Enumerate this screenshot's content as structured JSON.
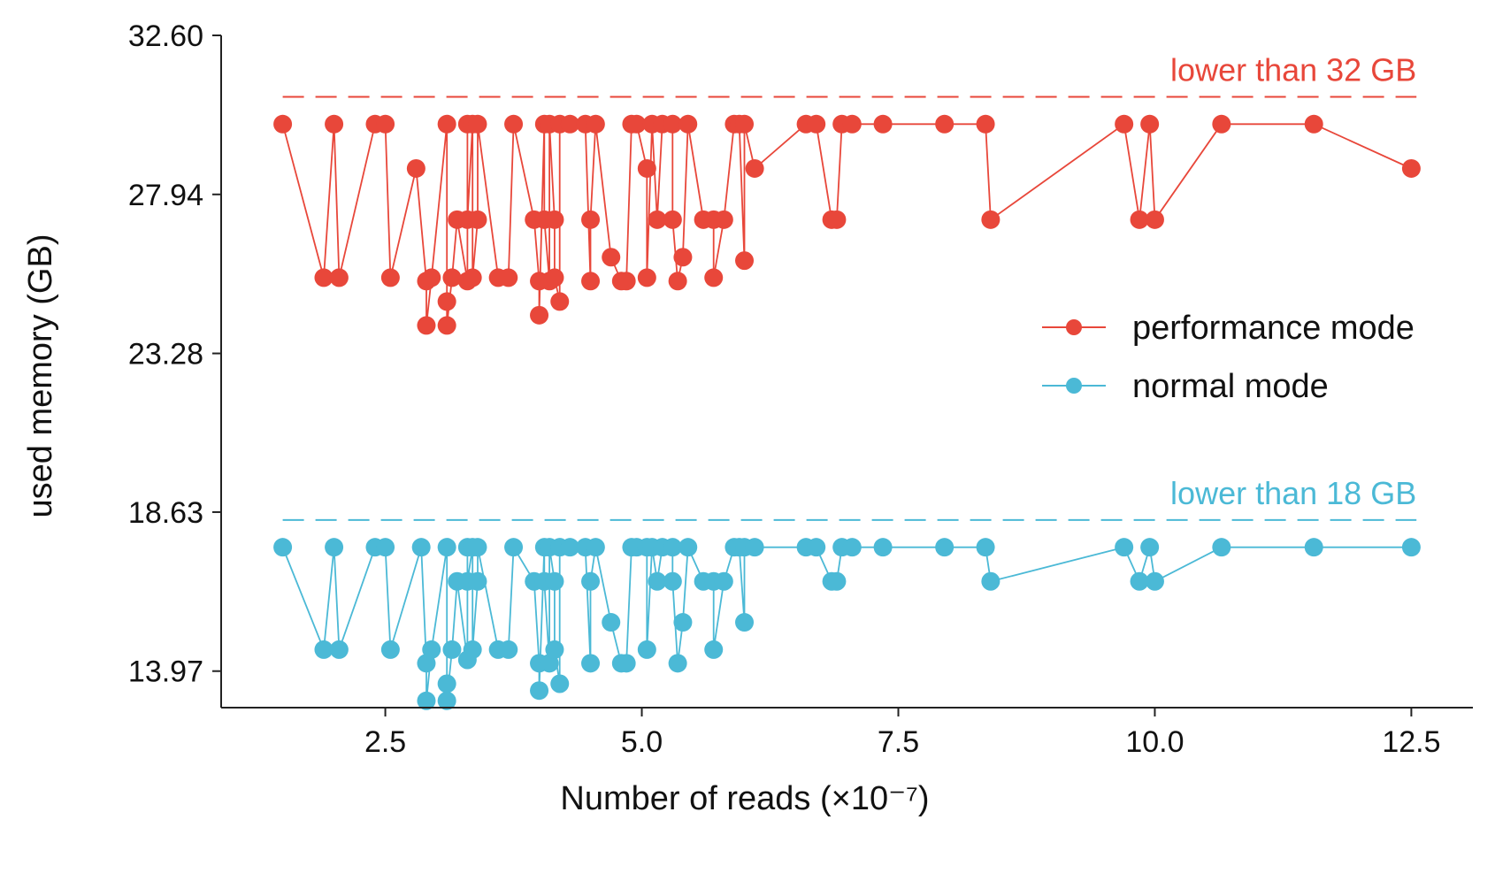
{
  "chart_data": {
    "type": "line",
    "xlabel": "Number of reads (×10⁻⁷)",
    "ylabel": "used memory (GB)",
    "xlim": [
      0.9,
      13.1
    ],
    "ylim": [
      12.9,
      32.6
    ],
    "xticks": [
      2.5,
      5.0,
      7.5,
      10.0,
      12.5
    ],
    "xtick_labels": [
      "2.5",
      "5.0",
      "7.5",
      "10.0",
      "12.5"
    ],
    "yticks": [
      13.97,
      18.63,
      23.28,
      27.94,
      32.6
    ],
    "ytick_labels": [
      "13.97",
      "18.63",
      "23.28",
      "27.94",
      "32.60"
    ],
    "grid": false,
    "legend_position": "right-middle",
    "thresholds": [
      {
        "y": 30.8,
        "label": "lower than 32 GB",
        "color": "#E8473A"
      },
      {
        "y": 18.4,
        "label": "lower than 18 GB",
        "color": "#4BB9D6"
      }
    ],
    "series": [
      {
        "name": "performance mode",
        "color": "#E8473A",
        "points": [
          [
            1.5,
            30.0
          ],
          [
            1.9,
            25.5
          ],
          [
            2.0,
            30.0
          ],
          [
            2.05,
            25.5
          ],
          [
            2.4,
            30.0
          ],
          [
            2.5,
            30.0
          ],
          [
            2.55,
            25.5
          ],
          [
            2.8,
            28.7
          ],
          [
            2.9,
            25.4
          ],
          [
            2.9,
            24.1
          ],
          [
            2.95,
            25.5
          ],
          [
            3.1,
            30.0
          ],
          [
            3.1,
            24.8
          ],
          [
            3.1,
            24.1
          ],
          [
            3.15,
            25.5
          ],
          [
            3.2,
            27.2
          ],
          [
            3.3,
            25.4
          ],
          [
            3.3,
            30.0
          ],
          [
            3.3,
            27.2
          ],
          [
            3.35,
            30.0
          ],
          [
            3.35,
            25.5
          ],
          [
            3.4,
            27.2
          ],
          [
            3.4,
            30.0
          ],
          [
            3.6,
            25.5
          ],
          [
            3.7,
            25.5
          ],
          [
            3.75,
            30.0
          ],
          [
            3.95,
            27.2
          ],
          [
            4.0,
            25.4
          ],
          [
            4.0,
            24.4
          ],
          [
            4.05,
            30.0
          ],
          [
            4.05,
            27.2
          ],
          [
            4.1,
            25.4
          ],
          [
            4.1,
            30.0
          ],
          [
            4.15,
            27.2
          ],
          [
            4.15,
            25.5
          ],
          [
            4.2,
            24.8
          ],
          [
            4.2,
            30.0
          ],
          [
            4.3,
            30.0
          ],
          [
            4.45,
            30.0
          ],
          [
            4.5,
            25.4
          ],
          [
            4.5,
            27.2
          ],
          [
            4.55,
            30.0
          ],
          [
            4.7,
            26.1
          ],
          [
            4.8,
            25.4
          ],
          [
            4.85,
            25.4
          ],
          [
            4.9,
            30.0
          ],
          [
            4.95,
            30.0
          ],
          [
            5.05,
            28.7
          ],
          [
            5.05,
            25.5
          ],
          [
            5.1,
            30.0
          ],
          [
            5.15,
            27.2
          ],
          [
            5.2,
            30.0
          ],
          [
            5.3,
            30.0
          ],
          [
            5.3,
            27.2
          ],
          [
            5.35,
            25.4
          ],
          [
            5.4,
            26.1
          ],
          [
            5.45,
            30.0
          ],
          [
            5.6,
            27.2
          ],
          [
            5.7,
            27.2
          ],
          [
            5.7,
            25.5
          ],
          [
            5.8,
            27.2
          ],
          [
            5.9,
            30.0
          ],
          [
            5.95,
            30.0
          ],
          [
            6.0,
            26.0
          ],
          [
            6.0,
            30.0
          ],
          [
            6.1,
            28.7
          ],
          [
            6.6,
            30.0
          ],
          [
            6.7,
            30.0
          ],
          [
            6.85,
            27.2
          ],
          [
            6.9,
            27.2
          ],
          [
            6.95,
            30.0
          ],
          [
            7.05,
            30.0
          ],
          [
            7.35,
            30.0
          ],
          [
            7.95,
            30.0
          ],
          [
            8.35,
            30.0
          ],
          [
            8.4,
            27.2
          ],
          [
            9.7,
            30.0
          ],
          [
            9.85,
            27.2
          ],
          [
            9.95,
            30.0
          ],
          [
            10.0,
            27.2
          ],
          [
            10.65,
            30.0
          ],
          [
            11.55,
            30.0
          ],
          [
            12.5,
            28.7
          ]
        ]
      },
      {
        "name": "normal mode",
        "color": "#4BB9D6",
        "points": [
          [
            1.5,
            17.6
          ],
          [
            1.9,
            14.6
          ],
          [
            2.0,
            17.6
          ],
          [
            2.05,
            14.6
          ],
          [
            2.4,
            17.6
          ],
          [
            2.5,
            17.6
          ],
          [
            2.55,
            14.6
          ],
          [
            2.85,
            17.6
          ],
          [
            2.9,
            14.2
          ],
          [
            2.9,
            13.1
          ],
          [
            2.95,
            14.6
          ],
          [
            3.1,
            17.6
          ],
          [
            3.1,
            13.6
          ],
          [
            3.1,
            13.1
          ],
          [
            3.15,
            14.6
          ],
          [
            3.2,
            16.6
          ],
          [
            3.3,
            14.3
          ],
          [
            3.3,
            17.6
          ],
          [
            3.3,
            16.6
          ],
          [
            3.35,
            17.6
          ],
          [
            3.35,
            14.6
          ],
          [
            3.4,
            16.6
          ],
          [
            3.4,
            17.6
          ],
          [
            3.6,
            14.6
          ],
          [
            3.7,
            14.6
          ],
          [
            3.75,
            17.6
          ],
          [
            3.95,
            16.6
          ],
          [
            4.0,
            14.2
          ],
          [
            4.0,
            13.4
          ],
          [
            4.05,
            17.6
          ],
          [
            4.05,
            16.6
          ],
          [
            4.1,
            14.2
          ],
          [
            4.1,
            17.6
          ],
          [
            4.15,
            16.6
          ],
          [
            4.15,
            14.6
          ],
          [
            4.2,
            13.6
          ],
          [
            4.2,
            17.6
          ],
          [
            4.3,
            17.6
          ],
          [
            4.45,
            17.6
          ],
          [
            4.5,
            14.2
          ],
          [
            4.5,
            16.6
          ],
          [
            4.55,
            17.6
          ],
          [
            4.7,
            15.4
          ],
          [
            4.8,
            14.2
          ],
          [
            4.85,
            14.2
          ],
          [
            4.9,
            17.6
          ],
          [
            4.95,
            17.6
          ],
          [
            5.05,
            17.6
          ],
          [
            5.05,
            14.6
          ],
          [
            5.1,
            17.6
          ],
          [
            5.15,
            16.6
          ],
          [
            5.2,
            17.6
          ],
          [
            5.3,
            17.6
          ],
          [
            5.3,
            16.6
          ],
          [
            5.35,
            14.2
          ],
          [
            5.4,
            15.4
          ],
          [
            5.45,
            17.6
          ],
          [
            5.6,
            16.6
          ],
          [
            5.7,
            16.6
          ],
          [
            5.7,
            14.6
          ],
          [
            5.8,
            16.6
          ],
          [
            5.9,
            17.6
          ],
          [
            5.95,
            17.6
          ],
          [
            6.0,
            15.4
          ],
          [
            6.0,
            17.6
          ],
          [
            6.1,
            17.6
          ],
          [
            6.6,
            17.6
          ],
          [
            6.7,
            17.6
          ],
          [
            6.85,
            16.6
          ],
          [
            6.9,
            16.6
          ],
          [
            6.95,
            17.6
          ],
          [
            7.05,
            17.6
          ],
          [
            7.35,
            17.6
          ],
          [
            7.95,
            17.6
          ],
          [
            8.35,
            17.6
          ],
          [
            8.4,
            16.6
          ],
          [
            9.7,
            17.6
          ],
          [
            9.85,
            16.6
          ],
          [
            9.95,
            17.6
          ],
          [
            10.0,
            16.6
          ],
          [
            10.65,
            17.6
          ],
          [
            11.55,
            17.6
          ],
          [
            12.5,
            17.6
          ]
        ]
      }
    ]
  }
}
